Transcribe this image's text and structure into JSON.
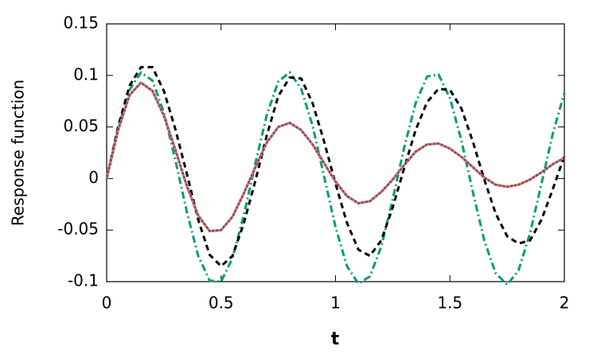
{
  "chart_data": {
    "type": "line",
    "xlabel": "t",
    "ylabel": "Response function",
    "x": [
      0,
      0.05,
      0.1,
      0.15,
      0.2,
      0.25,
      0.3,
      0.35,
      0.4,
      0.45,
      0.5,
      0.55,
      0.6,
      0.65,
      0.7,
      0.75,
      0.8,
      0.85,
      0.9,
      0.95,
      1,
      1.05,
      1.1,
      1.15,
      1.2,
      1.25,
      1.3,
      1.35,
      1.4,
      1.45,
      1.5,
      1.55,
      1.6,
      1.65,
      1.7,
      1.75,
      1.8,
      1.85,
      1.9,
      1.95,
      2
    ],
    "series": [
      {
        "color": "#009e73",
        "dash": "dashdot",
        "values": [
          0,
          0.049,
          0.086,
          0.103,
          0.095,
          0.064,
          0.018,
          -0.032,
          -0.075,
          -0.099,
          -0.1,
          -0.077,
          -0.035,
          0.015,
          0.062,
          0.094,
          0.103,
          0.087,
          0.051,
          0.002,
          -0.047,
          -0.085,
          -0.102,
          -0.095,
          -0.066,
          -0.02,
          0.03,
          0.073,
          0.099,
          0.101,
          0.078,
          0.037,
          -0.013,
          -0.06,
          -0.092,
          -0.103,
          -0.089,
          -0.053,
          -0.005,
          0.044,
          0.083
        ]
      },
      {
        "color": "#000000",
        "dash": "dashed",
        "values": [
          0,
          0.05,
          0.09,
          0.108,
          0.108,
          0.085,
          0.048,
          0.005,
          -0.04,
          -0.074,
          -0.085,
          -0.075,
          -0.043,
          -0.002,
          0.042,
          0.08,
          0.098,
          0.097,
          0.073,
          0.036,
          -0.005,
          -0.043,
          -0.069,
          -0.075,
          -0.06,
          -0.028,
          0.01,
          0.047,
          0.074,
          0.087,
          0.086,
          0.068,
          0.036,
          -0.001,
          -0.034,
          -0.056,
          -0.063,
          -0.06,
          -0.04,
          -0.01,
          0.022
        ]
      },
      {
        "color": "#d7301f",
        "dash": "solid",
        "values": [
          0,
          0.047,
          0.081,
          0.093,
          0.085,
          0.061,
          0.028,
          -0.007,
          -0.036,
          -0.051,
          -0.05,
          -0.037,
          -0.014,
          0.011,
          0.035,
          0.05,
          0.054,
          0.047,
          0.033,
          0.015,
          -0.003,
          -0.017,
          -0.024,
          -0.022,
          -0.013,
          -0.001,
          0.013,
          0.026,
          0.033,
          0.034,
          0.029,
          0.021,
          0.011,
          0.001,
          -0.006,
          -0.008,
          -0.006,
          -0.001,
          0.006,
          0.014,
          0.02
        ]
      },
      {
        "color": "#6aa6d8",
        "dash": "dotted",
        "values": [
          0,
          0.047,
          0.081,
          0.093,
          0.085,
          0.061,
          0.028,
          -0.007,
          -0.036,
          -0.051,
          -0.05,
          -0.037,
          -0.014,
          0.011,
          0.035,
          0.05,
          0.054,
          0.047,
          0.033,
          0.015,
          -0.003,
          -0.017,
          -0.024,
          -0.022,
          -0.013,
          -0.001,
          0.013,
          0.026,
          0.033,
          0.034,
          0.029,
          0.021,
          0.011,
          0.001,
          -0.006,
          -0.008,
          -0.006,
          -0.001,
          0.006,
          0.014,
          0.02
        ]
      }
    ],
    "xlim": [
      0,
      2
    ],
    "xticks": [
      0,
      0.5,
      1,
      1.5,
      2
    ],
    "ylim": [
      -0.1,
      0.15
    ],
    "yticks": [
      -0.1,
      -0.05,
      0,
      0.05,
      0.1,
      0.15
    ],
    "grid": false
  }
}
